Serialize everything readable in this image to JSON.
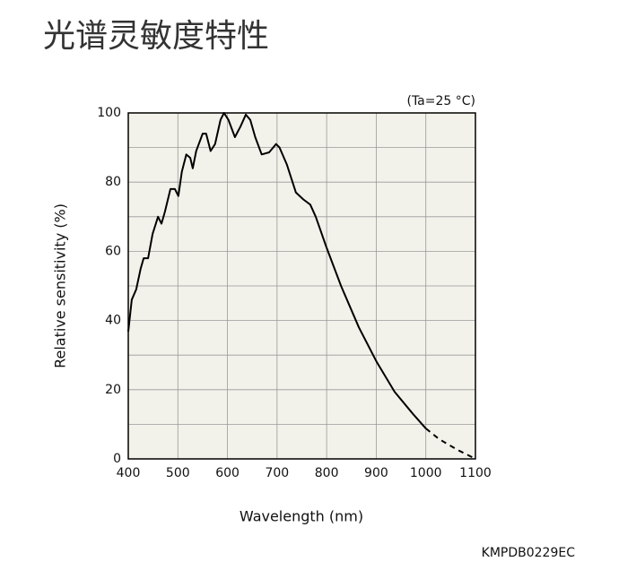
{
  "chart_data": {
    "type": "line",
    "title": "光谱灵敏度特性",
    "annotation": "(Ta=25 °C)",
    "code": "KMPDB0229EC",
    "x_label": "Wavelength (nm)",
    "y_label": "Relative sensitivity (%)",
    "xlim": [
      400,
      1100
    ],
    "xticks": [
      400,
      500,
      600,
      700,
      800,
      900,
      1000,
      1100
    ],
    "ylim": [
      0,
      100
    ],
    "yticks": [
      0,
      20,
      40,
      60,
      80,
      100
    ],
    "y_minor_grid": [
      10,
      30,
      50,
      70,
      90
    ],
    "grid": true,
    "plot_background": "#f3f2ea",
    "series": [
      {
        "color": "#000000",
        "style": "solid",
        "x": [
          400,
          407,
          416,
          425,
          431,
          440,
          449,
          460,
          467,
          474,
          485,
          494,
          501,
          508,
          517,
          525,
          530,
          537,
          550,
          557,
          566,
          575,
          586,
          593,
          602,
          615,
          626,
          637,
          646,
          656,
          669,
          684,
          698,
          705,
          720,
          738,
          753,
          767,
          778,
          800,
          829,
          865,
          901,
          937,
          974,
          1000
        ],
        "values": [
          36.8,
          46,
          49,
          55,
          58,
          58,
          65,
          70,
          68,
          71.5,
          78,
          78,
          76,
          83,
          88,
          87,
          84,
          89,
          94,
          94,
          89,
          91,
          98,
          100,
          98,
          93,
          96,
          99.5,
          98,
          93,
          88,
          88.6,
          91,
          90,
          85,
          77,
          75,
          73.5,
          70,
          61,
          50,
          38,
          28,
          19.4,
          13,
          8.8
        ]
      },
      {
        "color": "#000000",
        "style": "dashed",
        "x": [
          1000,
          1027,
          1064,
          1096,
          1100
        ],
        "values": [
          8.8,
          5.7,
          2.6,
          0.3,
          0
        ]
      }
    ]
  }
}
